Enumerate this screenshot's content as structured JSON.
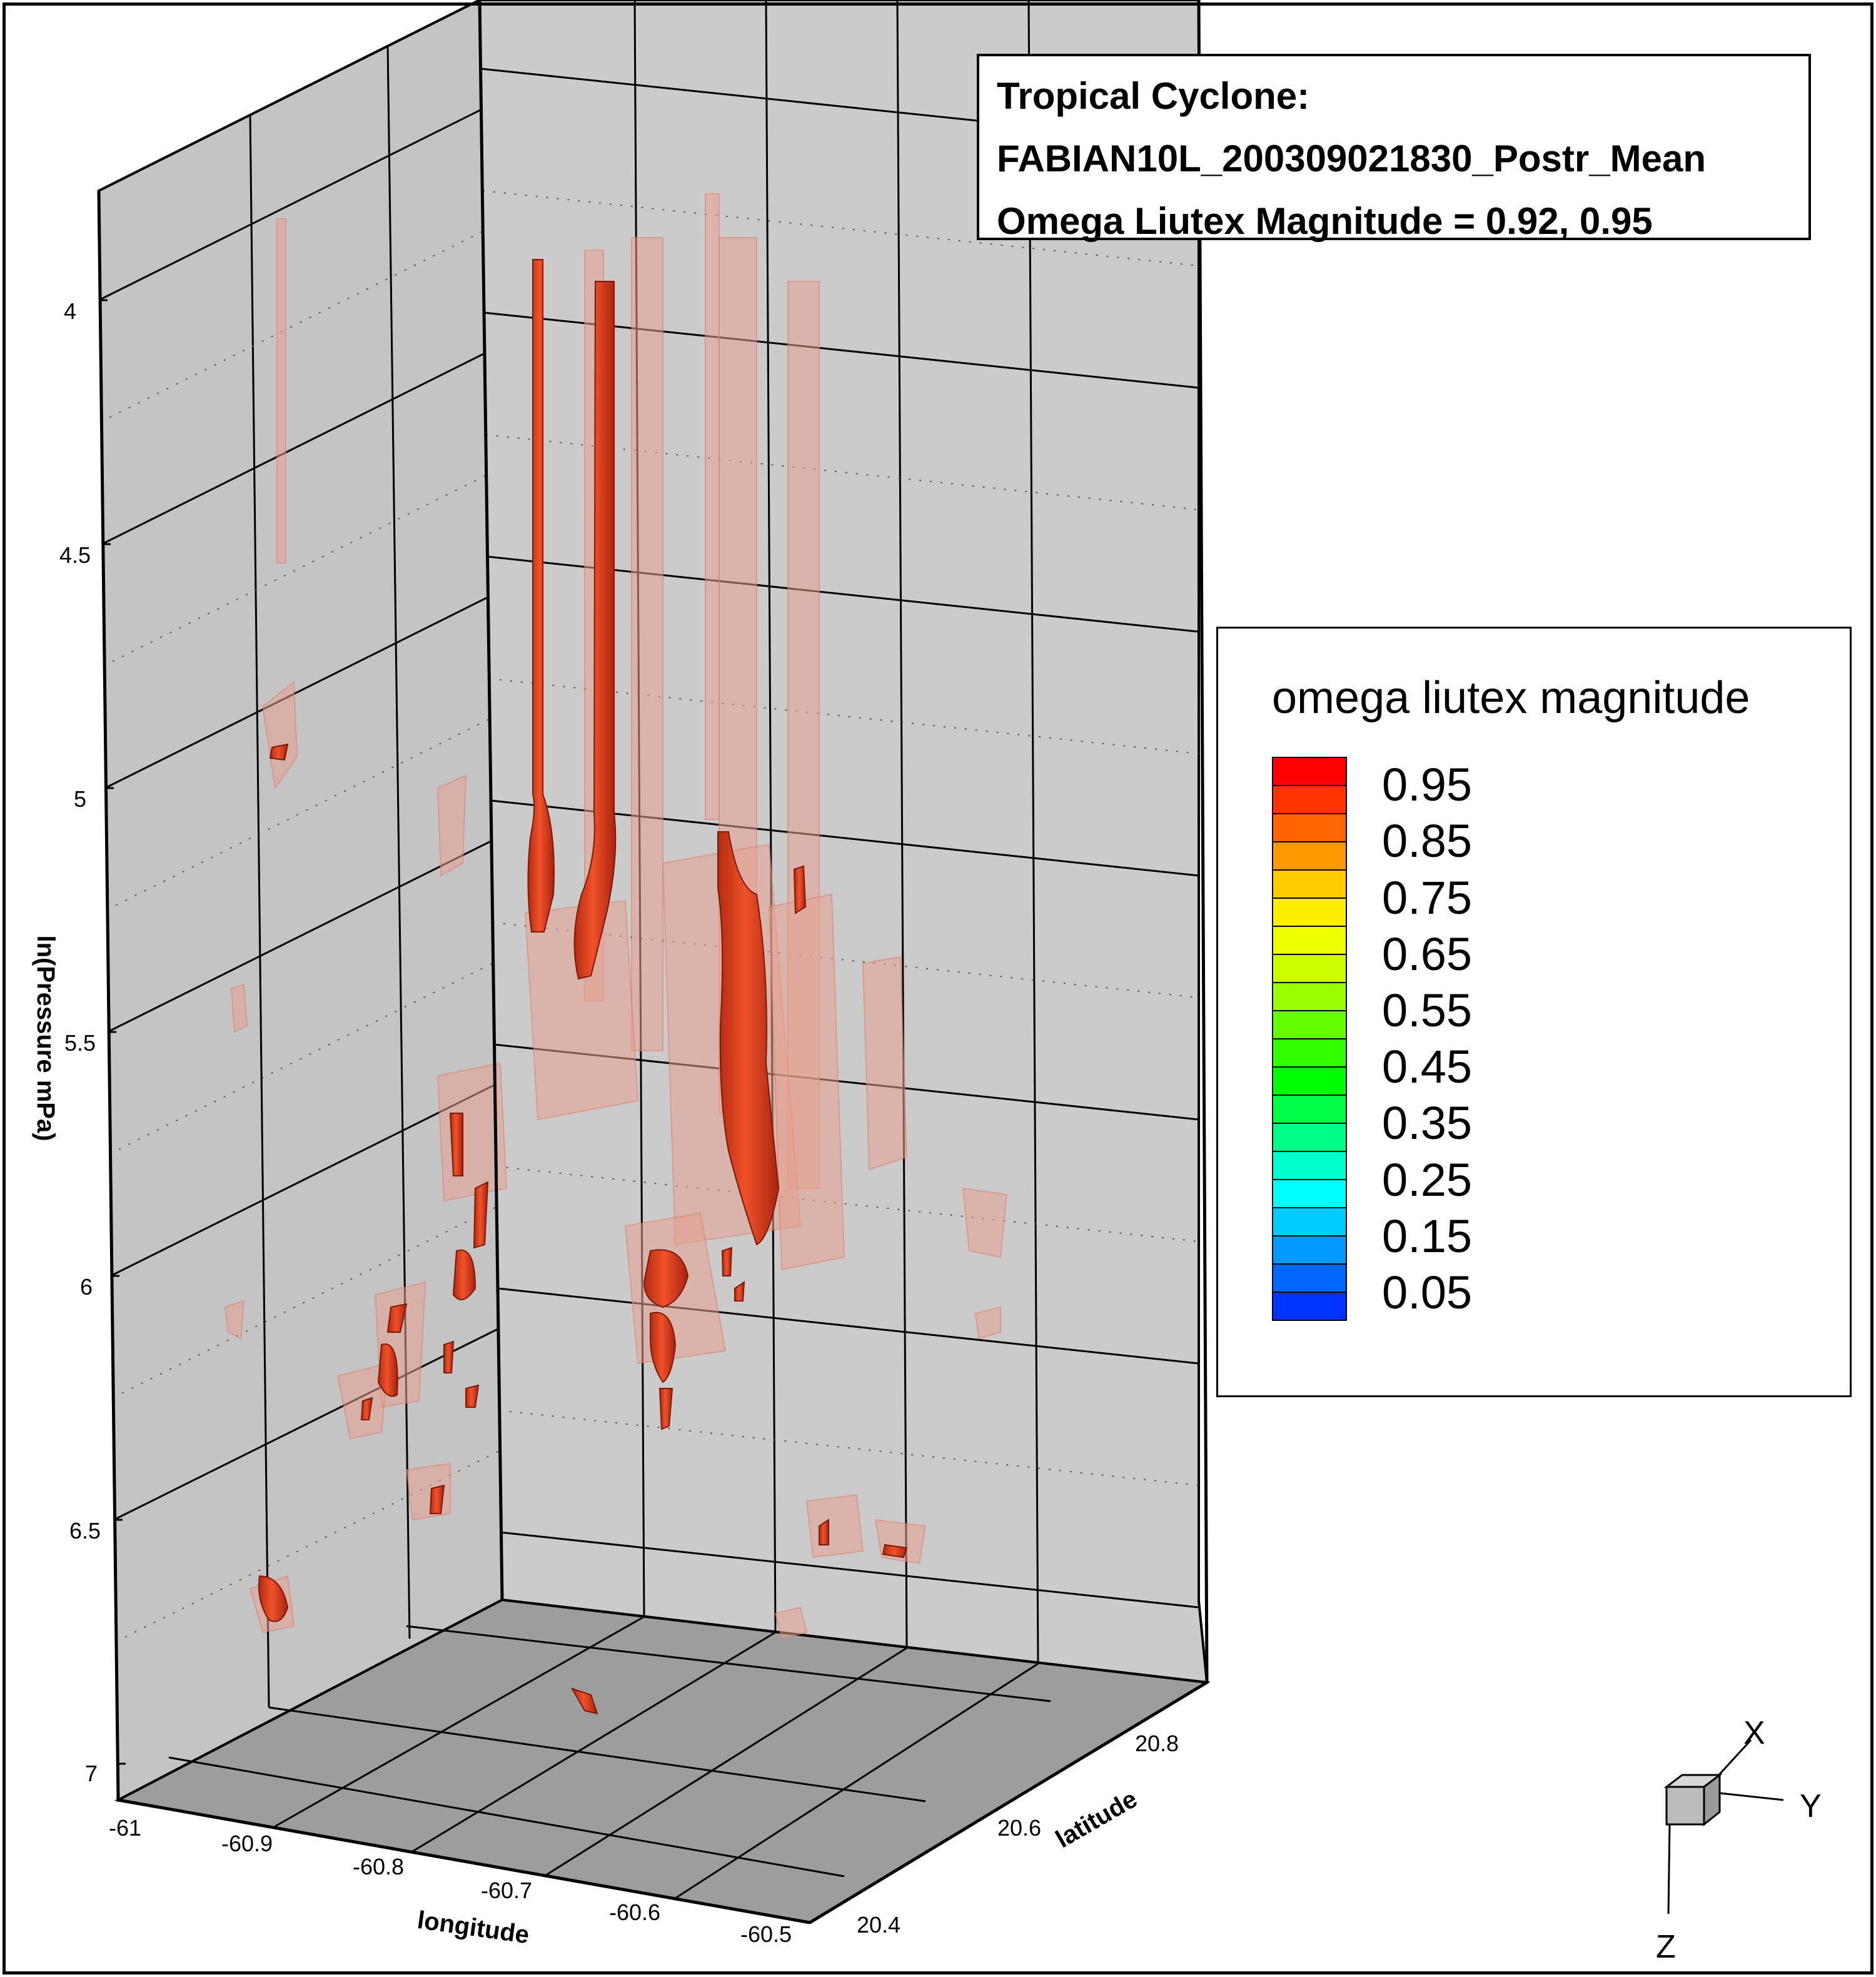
{
  "title_lines": [
    "Tropical Cyclone:",
    "FABIAN10L_200309021830_Postr_Mean",
    "Omega Liutex Magnitude = 0.92, 0.95"
  ],
  "legend": {
    "title": "omega liutex magnitude",
    "labels": [
      "0.95",
      "0.85",
      "0.75",
      "0.65",
      "0.55",
      "0.45",
      "0.35",
      "0.25",
      "0.15",
      "0.05"
    ],
    "swatch_colors": [
      "#ff0000",
      "#ff3300",
      "#ff6600",
      "#ff9900",
      "#ffcc00",
      "#ffee00",
      "#eeff00",
      "#ccff00",
      "#99ff00",
      "#66ff00",
      "#33ff00",
      "#00ff00",
      "#00ff44",
      "#00ff88",
      "#00ffcc",
      "#00ffff",
      "#00ccff",
      "#0099ff",
      "#0066ff",
      "#0033ff"
    ]
  },
  "axes": {
    "z_label": "ln(Pressure mPa)",
    "z_ticks": [
      "4",
      "4.5",
      "5",
      "5.5",
      "6",
      "6.5",
      "7"
    ],
    "x_label": "longitude",
    "x_ticks": [
      "-61",
      "-60.9",
      "-60.8",
      "-60.7",
      "-60.6",
      "-60.5"
    ],
    "y_label": "latitude",
    "y_ticks": [
      "20.4",
      "20.6",
      "20.8"
    ]
  },
  "orientation_axes": {
    "x": "X",
    "y": "Y",
    "z": "Z"
  },
  "colors": {
    "wall": "#c6c6c6",
    "floor": "#a0a0a0",
    "iso_strong": "#e8421e",
    "iso_faint": "#e8a090"
  }
}
